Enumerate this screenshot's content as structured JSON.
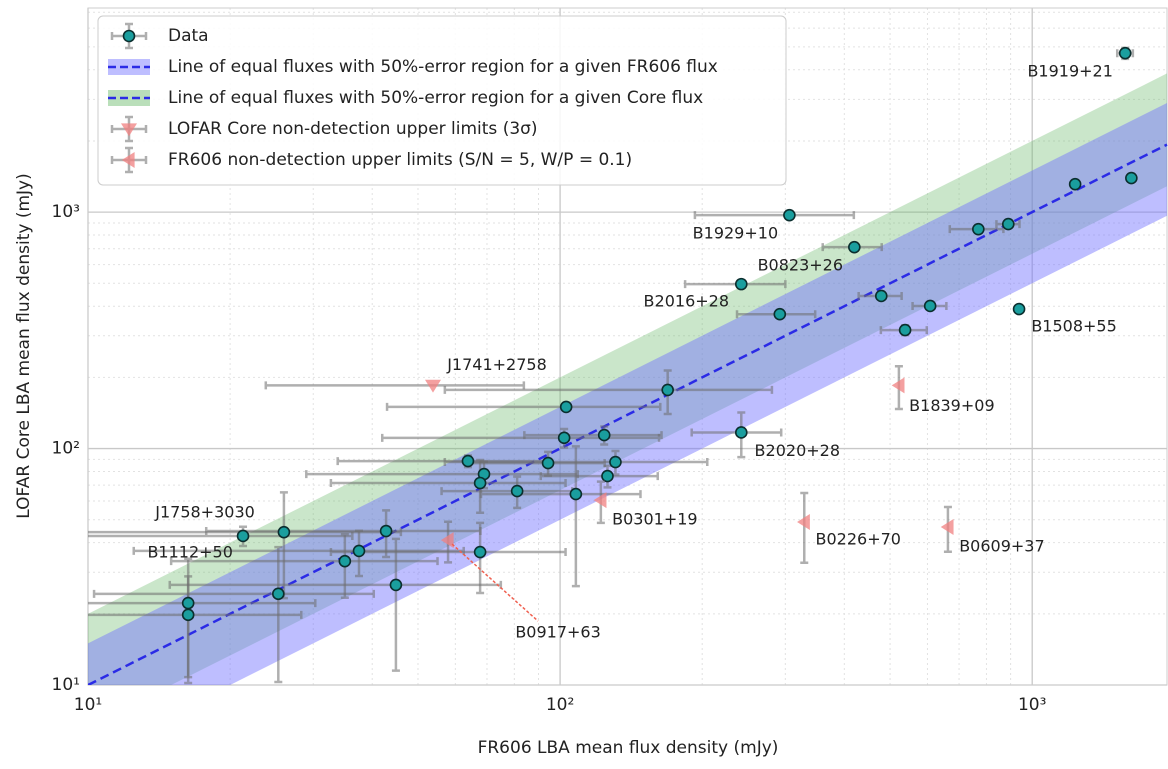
{
  "chart_data": {
    "type": "scatter",
    "x_label": "FR606 LBA mean flux density (mJy)",
    "y_label": "LOFAR Core LBA mean flux density (mJy)",
    "xscale": "log",
    "yscale": "log",
    "xlim": [
      10,
      1930
    ],
    "ylim": [
      10,
      7300
    ],
    "xticks": [
      {
        "value": 10,
        "label": "10¹"
      },
      {
        "value": 100,
        "label": "10²"
      },
      {
        "value": 1000,
        "label": "10³"
      }
    ],
    "yticks": [
      {
        "value": 10,
        "label": "10¹"
      },
      {
        "value": 100,
        "label": "10²"
      },
      {
        "value": 1000,
        "label": "10³"
      }
    ],
    "grid": true,
    "minor_grid": true,
    "legend": "upper left",
    "bands": [
      {
        "name": "Line of equal fluxes with 50%-error region for a given FR606 flux",
        "color": "#6e6eff",
        "line_color": "#2b2be6",
        "given": "x",
        "lower": 0.5,
        "upper": 1.5
      },
      {
        "name": "Line of equal fluxes with 50%-error region for a given Core flux",
        "color": "#66b866",
        "line_color": "#2b2be6",
        "given": "y",
        "lower": 0.5,
        "upper": 1.5
      }
    ],
    "series": [
      {
        "name": "Data",
        "marker": "o",
        "color": "#1a9e9e",
        "x": [
          1574,
          1622,
          1233,
          890,
          769,
          306,
          420,
          242,
          479,
          608,
          938,
          292,
          538,
          169,
          103,
          242,
          102,
          124,
          63.8,
          131,
          94.3,
          69.0,
          67.7,
          126,
          81.1,
          108,
          42.8,
          26.0,
          21.3,
          37.5,
          35.0,
          67.7,
          44.9,
          25.3,
          16.3,
          16.3
        ],
        "y": [
          4700,
          1393,
          1313,
          890,
          847,
          971,
          711,
          496,
          442,
          401,
          389,
          370,
          317,
          177,
          150,
          117,
          111,
          114,
          88.5,
          87.7,
          86.8,
          78.0,
          71.5,
          76.5,
          66.1,
          64.2,
          44.8,
          44.3,
          42.7,
          36.9,
          33.4,
          36.5,
          26.5,
          24.3,
          22.2,
          19.8
        ],
        "xerr": [
          60,
          0,
          0,
          50,
          100,
          113,
          60,
          58,
          50,
          50,
          0,
          55,
          60,
          112,
          60,
          52,
          60,
          40,
          30,
          74,
          30,
          40,
          35,
          35,
          25,
          40,
          25,
          20,
          15,
          25,
          20,
          35,
          30,
          15,
          14,
          12
        ],
        "yerr": [
          250,
          0,
          0,
          0,
          0,
          0,
          0,
          0,
          0,
          0,
          0,
          0,
          15,
          37,
          0,
          25,
          10,
          10,
          5,
          10,
          10,
          10,
          18,
          8,
          10,
          38,
          10,
          21,
          4,
          8,
          10,
          12,
          15,
          14,
          12,
          9
        ],
        "labels": [
          "B1919+21",
          null,
          null,
          null,
          null,
          "B1929+10",
          "B0823+26",
          "B2016+28",
          null,
          null,
          "B1508+55",
          null,
          null,
          null,
          null,
          "B2020+28",
          null,
          null,
          null,
          null,
          null,
          null,
          null,
          null,
          null,
          null,
          null,
          null,
          "J1758+3030",
          null,
          null,
          null,
          null,
          null,
          "B1112+50",
          null
        ]
      },
      {
        "name": "LOFAR Core non-detection upper limits (3σ)",
        "marker": "v",
        "color": "#f08080",
        "x": [
          53.8
        ],
        "y": [
          185
        ],
        "xerr": [
          30
        ],
        "labels": [
          "J1741+2758"
        ]
      },
      {
        "name": "FR606 non-detection upper limits (S/N = 5, W/P = 0.1)",
        "marker": "<",
        "color": "#f08080",
        "x": [
          522,
          122,
          329,
          663,
          57.9
        ],
        "y": [
          185,
          60.5,
          48.9,
          46.6,
          41.0
        ],
        "yerr": [
          38,
          12,
          16,
          10,
          8
        ],
        "labels": [
          "B1839+09",
          "B0301+19",
          "B0226+70",
          "B0609+37",
          "B0917+63"
        ]
      }
    ]
  }
}
